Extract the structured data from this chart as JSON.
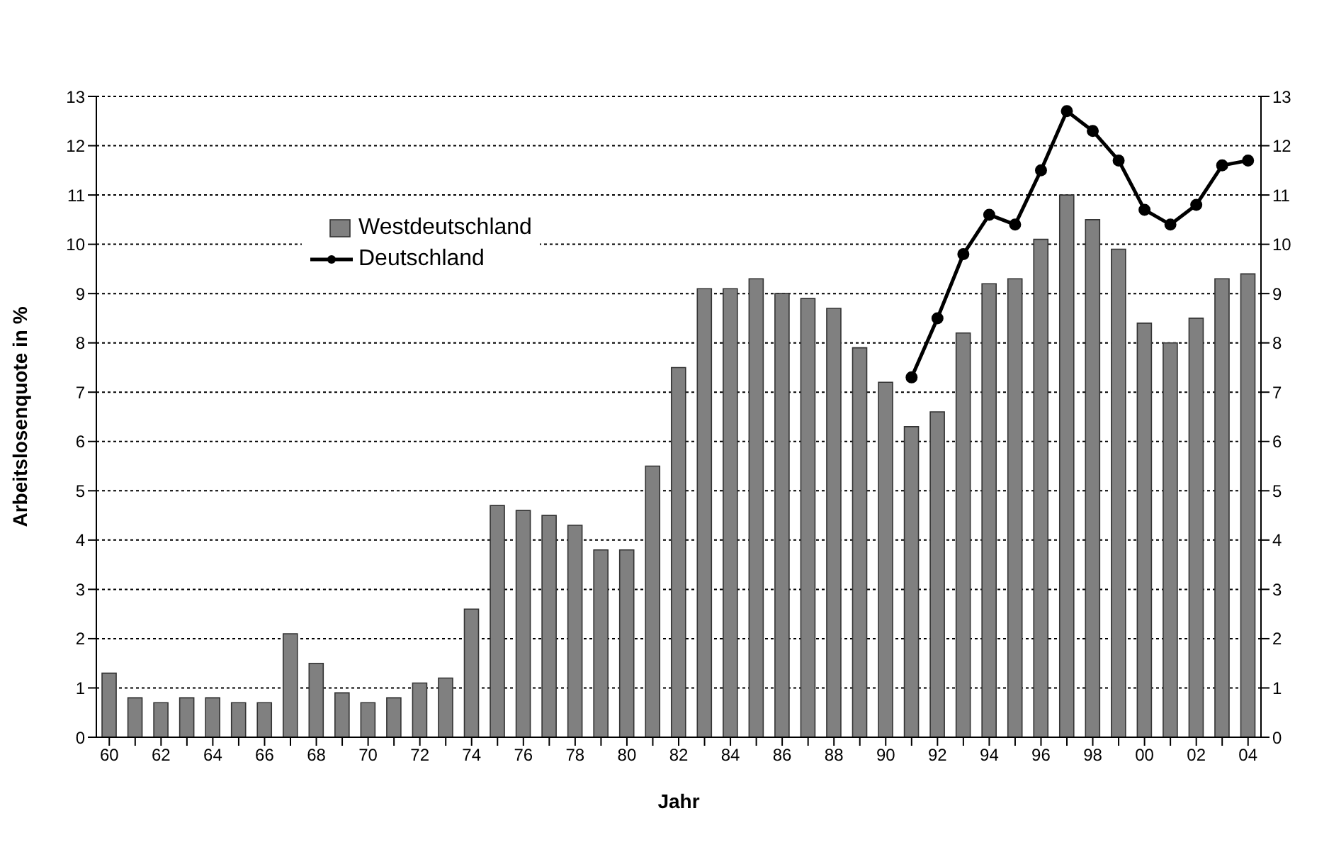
{
  "chart_data": {
    "type": "bar",
    "xlabel": "Jahr",
    "ylabel": "Arbeitslosenquote in %",
    "categories": [
      "60",
      null,
      "62",
      null,
      "64",
      null,
      "66",
      null,
      "68",
      null,
      "70",
      null,
      "72",
      null,
      "74",
      null,
      "76",
      null,
      "78",
      null,
      "80",
      null,
      "82",
      null,
      "84",
      null,
      "86",
      null,
      "88",
      null,
      "90",
      null,
      "92",
      null,
      "94",
      null,
      "96",
      null,
      "98",
      null,
      "00",
      null,
      "02",
      null,
      "04"
    ],
    "series": [
      {
        "name": "Westdeutschland",
        "color": "#808080",
        "values": [
          1.3,
          0.8,
          0.7,
          0.8,
          0.8,
          0.7,
          0.7,
          2.1,
          1.5,
          0.9,
          0.7,
          0.8,
          1.1,
          1.2,
          2.6,
          4.7,
          4.6,
          4.5,
          4.3,
          3.8,
          3.8,
          5.5,
          7.5,
          9.1,
          9.1,
          9.3,
          9.0,
          8.9,
          8.7,
          7.9,
          7.2,
          6.3,
          6.6,
          8.2,
          9.2,
          9.3,
          10.1,
          11.0,
          10.5,
          9.9,
          8.4,
          8.0,
          8.5,
          9.3,
          9.4
        ]
      },
      {
        "name": "Deutschland",
        "type": "line",
        "color": "#000000",
        "values": [
          null,
          null,
          null,
          null,
          null,
          null,
          null,
          null,
          null,
          null,
          null,
          null,
          null,
          null,
          null,
          null,
          null,
          null,
          null,
          null,
          null,
          null,
          null,
          null,
          null,
          null,
          null,
          null,
          null,
          null,
          null,
          7.3,
          8.5,
          9.8,
          10.6,
          10.4,
          11.5,
          12.7,
          12.3,
          11.7,
          10.7,
          10.4,
          10.8,
          11.6,
          11.7
        ]
      }
    ],
    "ylim": [
      0,
      13
    ],
    "yticks": [
      0,
      1,
      2,
      3,
      4,
      5,
      6,
      7,
      8,
      9,
      10,
      11,
      12,
      13
    ],
    "y2lim": [
      0,
      13
    ],
    "y2ticks": [
      0,
      1,
      2,
      3,
      4,
      5,
      6,
      7,
      8,
      9,
      10,
      11,
      12,
      13
    ],
    "grid": "y",
    "legend": "top left",
    "marker": "circle",
    "line_style": "solid"
  }
}
